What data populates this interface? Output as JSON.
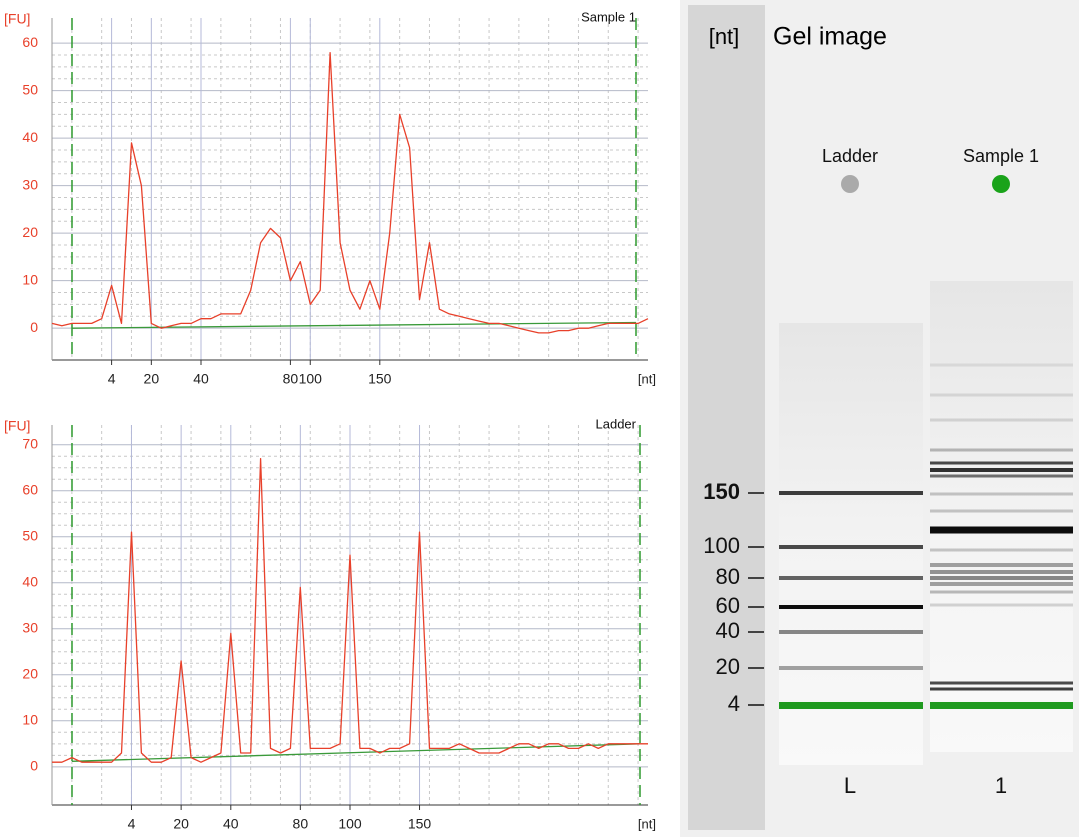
{
  "chart_data": [
    {
      "type": "line",
      "title": "Sample 1",
      "y_label": "[FU]",
      "x_label": "[nt]",
      "categories": [
        null,
        null,
        null,
        null,
        null,
        null,
        "4",
        null,
        null,
        null,
        "20",
        null,
        null,
        null,
        null,
        "40",
        null,
        null,
        null,
        null,
        null,
        null,
        null,
        null,
        "80",
        null,
        "100",
        null,
        null,
        null,
        null,
        null,
        null,
        "150",
        null,
        null,
        null,
        null,
        null,
        null,
        null,
        null,
        null,
        null,
        null,
        null,
        null,
        null,
        null,
        null,
        null,
        null,
        null,
        null,
        null,
        null,
        null,
        null,
        null,
        null,
        null
      ],
      "values": [
        1,
        0.5,
        1,
        1,
        1,
        2,
        9,
        1,
        39,
        30,
        1,
        0,
        0.5,
        1,
        1,
        2,
        2,
        3,
        3,
        3,
        8,
        18,
        21,
        19,
        10,
        14,
        5,
        8,
        58,
        18,
        8,
        4,
        10,
        4,
        20,
        45,
        38,
        6,
        18,
        4,
        3,
        2.5,
        2,
        1.5,
        1,
        1,
        0.5,
        0,
        -0.5,
        -1,
        -1,
        -0.5,
        -0.5,
        0,
        0,
        0.5,
        1,
        1,
        1,
        1,
        2
      ],
      "color": "#e8402a",
      "ylim": [
        -6.7,
        65.3
      ],
      "yticks": [
        0,
        10,
        20,
        30,
        40,
        50,
        60
      ],
      "grid": true,
      "baseline": {
        "color": "#3a9a3a",
        "values": [
          0,
          1.2
        ]
      }
    },
    {
      "type": "line",
      "title": "Ladder",
      "y_label": "[FU]",
      "x_label": "[nt]",
      "categories": [
        null,
        null,
        null,
        null,
        null,
        null,
        null,
        null,
        "4",
        null,
        null,
        null,
        null,
        "20",
        null,
        null,
        null,
        null,
        "40",
        null,
        null,
        null,
        null,
        null,
        null,
        "80",
        null,
        null,
        null,
        null,
        "100",
        null,
        null,
        null,
        null,
        null,
        null,
        "150",
        null,
        null,
        null,
        null,
        null,
        null,
        null,
        null,
        null,
        null,
        null,
        null,
        null,
        null,
        null,
        null,
        null,
        null,
        null,
        null,
        null,
        null,
        null
      ],
      "values": [
        1,
        1,
        2,
        1,
        1,
        1,
        1,
        3,
        51,
        3,
        1,
        1,
        2,
        23,
        2,
        1,
        2,
        3,
        29,
        3,
        3,
        67,
        4,
        3,
        4,
        39,
        4,
        4,
        4,
        5,
        46,
        4,
        4,
        3,
        4,
        4,
        5,
        51,
        4,
        4,
        4,
        5,
        4,
        3,
        3,
        3,
        4,
        5,
        5,
        4,
        5,
        5,
        4,
        4,
        5,
        4,
        5,
        5,
        5,
        5,
        5
      ],
      "color": "#e8402a",
      "ylim": [
        -8.3,
        74.3
      ],
      "yticks": [
        0,
        10,
        20,
        30,
        40,
        50,
        60,
        70
      ],
      "grid": true,
      "baseline": {
        "color": "#3a9a3a",
        "values": [
          1.2,
          5
        ]
      }
    }
  ],
  "gel": {
    "axis_label": "[nt]",
    "title": "Gel image",
    "ticks": [
      150,
      100,
      80,
      60,
      40,
      20,
      4
    ],
    "lanes": [
      {
        "name": "Ladder",
        "label": "L",
        "color": "#aaaaaa"
      },
      {
        "name": "Sample 1",
        "label": "1",
        "color": "#1aa31a"
      }
    ]
  }
}
